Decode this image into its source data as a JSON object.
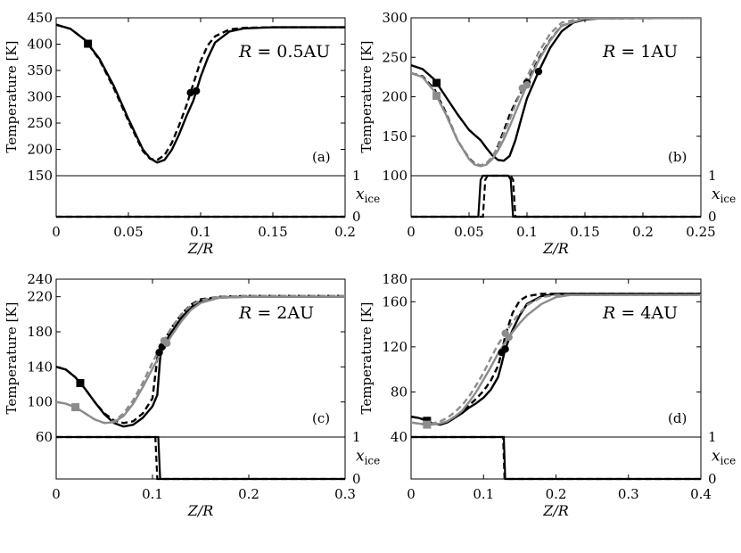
{
  "chart_data": [
    {
      "type": "line",
      "panel_label": "(a)",
      "annotation": "R = 0.5AU",
      "title_parts": {
        "var": "R",
        "eq": " = 0.5AU"
      },
      "xlabel": "Z/R",
      "ylabel": "Temperature [K]",
      "xlim": [
        0,
        0.2
      ],
      "ylim": [
        150,
        450
      ],
      "xticks": [
        "0",
        "0.05",
        "0.1",
        "0.15",
        "0.2"
      ],
      "xtick_values": [
        0,
        0.05,
        0.1,
        0.15,
        0.2
      ],
      "yticks": [
        "150",
        "200",
        "250",
        "300",
        "350",
        "400",
        "450"
      ],
      "ytick_values": [
        150,
        200,
        250,
        300,
        350,
        400,
        450
      ],
      "ice_ylabel": "x_ice",
      "ice_ylim": [
        0,
        1
      ],
      "ice_yticks": [
        "0",
        "1"
      ],
      "series": [
        {
          "name": "model solid",
          "color": "#000000",
          "dash": "",
          "marker": "square",
          "marker_x": 0.022,
          "circle_x": 0.097,
          "x": [
            0,
            0.01,
            0.02,
            0.03,
            0.04,
            0.05,
            0.06,
            0.065,
            0.07,
            0.075,
            0.08,
            0.085,
            0.09,
            0.095,
            0.1,
            0.105,
            0.11,
            0.12,
            0.13,
            0.15,
            0.2
          ],
          "y": [
            437,
            429,
            408,
            372,
            320,
            258,
            200,
            183,
            175,
            180,
            199,
            228,
            262,
            293,
            338,
            374,
            403,
            424,
            430,
            432,
            432
          ]
        },
        {
          "name": "model dashed",
          "color": "#000000",
          "dash": "7,4",
          "marker": "none",
          "marker_x": null,
          "circle_x": 0.093,
          "x": [
            0,
            0.01,
            0.02,
            0.03,
            0.04,
            0.05,
            0.06,
            0.065,
            0.07,
            0.075,
            0.08,
            0.085,
            0.09,
            0.095,
            0.1,
            0.105,
            0.11,
            0.12,
            0.13,
            0.15,
            0.2
          ],
          "y": [
            437,
            429,
            408,
            370,
            316,
            254,
            197,
            182,
            180,
            189,
            212,
            245,
            282,
            325,
            368,
            398,
            415,
            428,
            431,
            432,
            432
          ]
        }
      ],
      "ice_series": [
        {
          "name": "x_ice solid",
          "color": "#000000",
          "dash": "",
          "x": [
            0,
            0.2
          ],
          "y": [
            0,
            0
          ]
        },
        {
          "name": "x_ice dashed",
          "color": "#000000",
          "dash": "7,4",
          "x": [
            0,
            0.2
          ],
          "y": [
            0,
            0
          ]
        }
      ]
    },
    {
      "type": "line",
      "panel_label": "(b)",
      "annotation": "R = 1AU",
      "title_parts": {
        "var": "R",
        "eq": " = 1AU"
      },
      "xlabel": "Z/R",
      "ylabel": "Temperature [K]",
      "xlim": [
        0,
        0.25
      ],
      "ylim": [
        100,
        300
      ],
      "xticks": [
        "0",
        "0.05",
        "0.1",
        "0.15",
        "0.2",
        "0.25"
      ],
      "xtick_values": [
        0,
        0.05,
        0.1,
        0.15,
        0.2,
        0.25
      ],
      "yticks": [
        "100",
        "150",
        "200",
        "250",
        "300"
      ],
      "ytick_values": [
        100,
        150,
        200,
        250,
        300
      ],
      "ice_ylabel": "x_ice",
      "ice_ylim": [
        0,
        1
      ],
      "ice_yticks": [
        "0",
        "1"
      ],
      "series": [
        {
          "name": "black solid",
          "color": "#000000",
          "dash": "",
          "marker": "square",
          "marker_x": 0.022,
          "circle_x": 0.11,
          "x": [
            0,
            0.01,
            0.02,
            0.03,
            0.04,
            0.05,
            0.06,
            0.065,
            0.07,
            0.075,
            0.08,
            0.085,
            0.09,
            0.095,
            0.1,
            0.11,
            0.12,
            0.13,
            0.14,
            0.15,
            0.17,
            0.25
          ],
          "y": [
            240,
            235,
            222,
            200,
            178,
            158,
            145,
            135,
            126,
            120,
            119,
            125,
            145,
            172,
            198,
            232,
            262,
            283,
            294,
            298,
            300,
            300
          ]
        },
        {
          "name": "black dashed",
          "color": "#000000",
          "dash": "7,4",
          "marker": "none",
          "marker_x": null,
          "circle_x": 0.1,
          "x": [
            0,
            0.01,
            0.02,
            0.03,
            0.04,
            0.05,
            0.055,
            0.06,
            0.065,
            0.07,
            0.075,
            0.08,
            0.085,
            0.09,
            0.095,
            0.1,
            0.11,
            0.12,
            0.13,
            0.15,
            0.25
          ],
          "y": [
            230,
            226,
            210,
            180,
            145,
            122,
            115,
            113,
            115,
            122,
            138,
            157,
            177,
            193,
            206,
            218,
            248,
            272,
            290,
            299,
            300
          ]
        },
        {
          "name": "gray solid",
          "color": "#8c8c8c",
          "dash": "",
          "marker": "square",
          "marker_x": 0.022,
          "circle_x": 0.1,
          "x": [
            0,
            0.01,
            0.02,
            0.03,
            0.04,
            0.05,
            0.055,
            0.06,
            0.065,
            0.07,
            0.075,
            0.08,
            0.085,
            0.09,
            0.1,
            0.11,
            0.12,
            0.13,
            0.15,
            0.25
          ],
          "y": [
            230,
            225,
            207,
            178,
            145,
            121,
            114,
            112,
            114,
            121,
            132,
            146,
            162,
            180,
            215,
            246,
            271,
            290,
            299,
            300
          ]
        },
        {
          "name": "gray dashed",
          "color": "#8c8c8c",
          "dash": "7,4",
          "marker": "none",
          "marker_x": null,
          "circle_x": 0.096,
          "x": [
            0,
            0.01,
            0.02,
            0.03,
            0.04,
            0.05,
            0.055,
            0.06,
            0.065,
            0.07,
            0.075,
            0.08,
            0.085,
            0.09,
            0.1,
            0.11,
            0.12,
            0.13,
            0.15,
            0.25
          ],
          "y": [
            230,
            225,
            207,
            178,
            145,
            121,
            114,
            113,
            116,
            124,
            137,
            153,
            171,
            190,
            225,
            256,
            280,
            294,
            300,
            300
          ]
        }
      ],
      "ice_series": [
        {
          "name": "x_ice solid",
          "color": "#000000",
          "dash": "",
          "x": [
            0,
            0.058,
            0.06,
            0.062,
            0.084,
            0.086,
            0.088,
            0.25
          ],
          "y": [
            0,
            0,
            0.9,
            1,
            1,
            0.9,
            0,
            0
          ]
        },
        {
          "name": "x_ice dashed",
          "color": "#000000",
          "dash": "7,4",
          "x": [
            0,
            0.062,
            0.064,
            0.066,
            0.086,
            0.088,
            0.09,
            0.25
          ],
          "y": [
            0,
            0,
            0.9,
            1,
            1,
            0.9,
            0,
            0
          ]
        }
      ]
    },
    {
      "type": "line",
      "panel_label": "(c)",
      "annotation": "R = 2AU",
      "title_parts": {
        "var": "R",
        "eq": " = 2AU"
      },
      "xlabel": "Z/R",
      "ylabel": "Temperature [K]",
      "xlim": [
        0,
        0.3
      ],
      "ylim": [
        60,
        240
      ],
      "xticks": [
        "0",
        "0.1",
        "0.2",
        "0.3"
      ],
      "xtick_values": [
        0,
        0.1,
        0.2,
        0.3
      ],
      "yticks": [
        "60",
        "100",
        "140",
        "180",
        "220",
        "240"
      ],
      "ytick_values": [
        60,
        100,
        140,
        180,
        220,
        240
      ],
      "ice_ylabel": "x_ice",
      "ice_ylim": [
        0,
        1
      ],
      "ice_yticks": [
        "0",
        "1"
      ],
      "series": [
        {
          "name": "black solid",
          "color": "#000000",
          "dash": "",
          "marker": "square",
          "marker_x": 0.025,
          "circle_x": 0.11,
          "x": [
            0,
            0.01,
            0.02,
            0.03,
            0.04,
            0.05,
            0.06,
            0.07,
            0.08,
            0.09,
            0.1,
            0.105,
            0.108,
            0.11,
            0.12,
            0.13,
            0.14,
            0.15,
            0.17,
            0.2,
            0.3
          ],
          "y": [
            140,
            137,
            128,
            115,
            100,
            86,
            76,
            72,
            74,
            82,
            95,
            108,
            150,
            163,
            180,
            196,
            208,
            215,
            219,
            220,
            220
          ]
        },
        {
          "name": "black dashed",
          "color": "#000000",
          "dash": "7,4",
          "marker": "none",
          "marker_x": null,
          "circle_x": 0.107,
          "x": [
            0,
            0.01,
            0.02,
            0.03,
            0.04,
            0.05,
            0.06,
            0.07,
            0.08,
            0.09,
            0.1,
            0.105,
            0.11,
            0.12,
            0.13,
            0.14,
            0.15,
            0.17,
            0.2,
            0.3
          ],
          "y": [
            140,
            137,
            128,
            115,
            100,
            87,
            79,
            76,
            78,
            87,
            104,
            150,
            166,
            185,
            200,
            211,
            217,
            220,
            221,
            221
          ]
        },
        {
          "name": "gray solid",
          "color": "#8c8c8c",
          "dash": "",
          "marker": "square",
          "marker_x": 0.02,
          "circle_x": 0.115,
          "x": [
            0,
            0.01,
            0.02,
            0.03,
            0.04,
            0.05,
            0.06,
            0.07,
            0.08,
            0.09,
            0.1,
            0.11,
            0.12,
            0.13,
            0.14,
            0.15,
            0.17,
            0.2,
            0.3
          ],
          "y": [
            100,
            98,
            94,
            87,
            80,
            76,
            77,
            84,
            98,
            117,
            138,
            158,
            176,
            192,
            205,
            213,
            219,
            220,
            220
          ]
        },
        {
          "name": "gray dashed",
          "color": "#8c8c8c",
          "dash": "7,4",
          "marker": "none",
          "marker_x": null,
          "circle_x": 0.112,
          "x": [
            0,
            0.01,
            0.02,
            0.03,
            0.04,
            0.05,
            0.06,
            0.07,
            0.08,
            0.09,
            0.1,
            0.11,
            0.12,
            0.13,
            0.14,
            0.15,
            0.17,
            0.2,
            0.3
          ],
          "y": [
            100,
            98,
            94,
            87,
            80,
            76,
            78,
            87,
            102,
            122,
            145,
            166,
            185,
            200,
            210,
            216,
            220,
            221,
            221
          ]
        }
      ],
      "ice_series": [
        {
          "name": "x_ice solid",
          "color": "#000000",
          "dash": "",
          "x": [
            0,
            0.106,
            0.108,
            0.3
          ],
          "y": [
            1,
            1,
            0,
            0
          ]
        },
        {
          "name": "x_ice dashed",
          "color": "#000000",
          "dash": "7,4",
          "x": [
            0,
            0.103,
            0.105,
            0.3
          ],
          "y": [
            1,
            1,
            0,
            0
          ]
        }
      ]
    },
    {
      "type": "line",
      "panel_label": "(d)",
      "annotation": "R = 4AU",
      "title_parts": {
        "var": "R",
        "eq": " = 4AU"
      },
      "xlabel": "Z/R",
      "ylabel": "Temperature [K]",
      "xlim": [
        0,
        0.4
      ],
      "ylim": [
        40,
        180
      ],
      "xticks": [
        "0",
        "0.1",
        "0.2",
        "0.3",
        "0.4"
      ],
      "xtick_values": [
        0,
        0.1,
        0.2,
        0.3,
        0.4
      ],
      "yticks": [
        "40",
        "80",
        "120",
        "160",
        "180"
      ],
      "ytick_values": [
        40,
        80,
        120,
        160,
        180
      ],
      "ice_ylabel": "x_ice",
      "ice_ylim": [
        0,
        1
      ],
      "ice_yticks": [
        "0",
        "1"
      ],
      "series": [
        {
          "name": "black solid",
          "color": "#000000",
          "dash": "",
          "marker": "square",
          "marker_x": 0.022,
          "circle_x": 0.13,
          "x": [
            0,
            0.01,
            0.02,
            0.03,
            0.04,
            0.05,
            0.06,
            0.07,
            0.08,
            0.09,
            0.1,
            0.11,
            0.12,
            0.125,
            0.13,
            0.14,
            0.15,
            0.16,
            0.18,
            0.2,
            0.4
          ],
          "y": [
            58,
            57,
            55,
            52,
            51,
            53,
            57,
            61,
            66,
            70,
            75,
            82,
            93,
            105,
            118,
            135,
            148,
            158,
            165,
            167,
            167
          ]
        },
        {
          "name": "black dashed",
          "color": "#000000",
          "dash": "7,4",
          "marker": "none",
          "marker_x": null,
          "circle_x": 0.125,
          "x": [
            0,
            0.01,
            0.02,
            0.03,
            0.04,
            0.05,
            0.06,
            0.07,
            0.08,
            0.09,
            0.1,
            0.11,
            0.12,
            0.125,
            0.13,
            0.14,
            0.15,
            0.16,
            0.18,
            0.2,
            0.4
          ],
          "y": [
            58,
            57,
            55,
            52,
            51,
            53,
            57,
            62,
            68,
            74,
            81,
            90,
            103,
            115,
            130,
            150,
            161,
            165,
            167,
            167,
            167
          ]
        },
        {
          "name": "gray solid",
          "color": "#8c8c8c",
          "dash": "",
          "marker": "square",
          "marker_x": 0.022,
          "circle_x": 0.135,
          "x": [
            0,
            0.01,
            0.02,
            0.03,
            0.04,
            0.05,
            0.06,
            0.07,
            0.08,
            0.09,
            0.1,
            0.11,
            0.12,
            0.13,
            0.14,
            0.15,
            0.16,
            0.18,
            0.2,
            0.22,
            0.4
          ],
          "y": [
            53,
            52,
            51,
            51,
            52,
            54,
            58,
            63,
            71,
            80,
            91,
            102,
            114,
            124,
            133,
            141,
            148,
            158,
            164,
            166,
            166
          ]
        },
        {
          "name": "gray dashed",
          "color": "#8c8c8c",
          "dash": "7,4",
          "marker": "none",
          "marker_x": null,
          "circle_x": 0.13,
          "x": [
            0,
            0.01,
            0.02,
            0.03,
            0.04,
            0.05,
            0.06,
            0.07,
            0.08,
            0.09,
            0.1,
            0.11,
            0.12,
            0.13,
            0.14,
            0.15,
            0.16,
            0.18,
            0.2,
            0.4
          ],
          "y": [
            53,
            52,
            51,
            52,
            54,
            57,
            62,
            68,
            76,
            86,
            97,
            110,
            122,
            132,
            142,
            150,
            157,
            164,
            166,
            166
          ]
        }
      ],
      "ice_series": [
        {
          "name": "x_ice solid",
          "color": "#000000",
          "dash": "",
          "x": [
            0,
            0.128,
            0.13,
            0.4
          ],
          "y": [
            1,
            1,
            0,
            0
          ]
        },
        {
          "name": "x_ice dashed",
          "color": "#000000",
          "dash": "7,4",
          "x": [
            0,
            0.127,
            0.129,
            0.4
          ],
          "y": [
            1,
            1,
            0,
            0
          ]
        }
      ]
    }
  ]
}
